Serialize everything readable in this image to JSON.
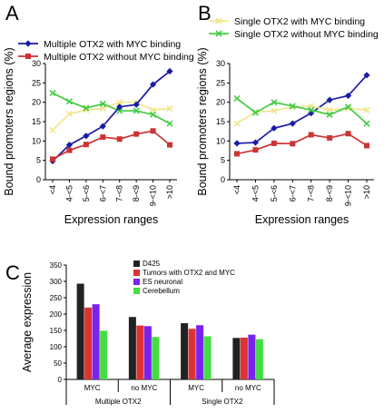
{
  "panels": {
    "a": "A",
    "b": "B",
    "c": "C"
  },
  "chart_data": [
    {
      "type": "line",
      "panel": "A",
      "categories": [
        "<4",
        "4-<5",
        "5-<6",
        "6-<7",
        "7-<8",
        "8-<9",
        "9-<10",
        ">10"
      ],
      "ylabel": "Bound promoters regions (%)",
      "xlabel": "Expression ranges",
      "ylim": [
        0,
        30
      ],
      "yticks": [
        0,
        5,
        10,
        15,
        20,
        25,
        30
      ],
      "legend": "top",
      "series": [
        {
          "name": "Multiple OTX2 with MYC binding",
          "color": "#1a1aa8",
          "marker": "diamond",
          "values": [
            4.8,
            9.0,
            11.3,
            13.8,
            18.8,
            19.4,
            24.6,
            28.0
          ]
        },
        {
          "name": "Multiple OTX2 without MYC binding",
          "color": "#cc3333",
          "marker": "square",
          "values": [
            5.3,
            7.6,
            9.1,
            11.0,
            10.5,
            11.8,
            12.6,
            9.0
          ]
        },
        {
          "name": "",
          "color": "#f0e68c",
          "marker": "x",
          "values": [
            12.8,
            17.0,
            18.0,
            18.4,
            20.0,
            20.0,
            18.0,
            18.4
          ]
        },
        {
          "name": "",
          "color": "#44cc44",
          "marker": "x",
          "values": [
            22.4,
            20.2,
            18.5,
            19.6,
            17.8,
            17.8,
            16.8,
            14.5
          ]
        }
      ]
    },
    {
      "type": "line",
      "panel": "B",
      "categories": [
        "<4",
        "4-<5",
        "5-<6",
        "6-<7",
        "7-<8",
        "8-<9",
        "9-<10",
        ">10"
      ],
      "ylabel": "Bound promoters regions (%)",
      "xlabel": "Expression ranges",
      "ylim": [
        0,
        30
      ],
      "yticks": [
        0,
        5,
        10,
        15,
        20,
        25,
        30
      ],
      "legend": "top",
      "series": [
        {
          "name": "Single OTX2 with MYC binding",
          "color": "#f0e68c",
          "marker": "x",
          "values": [
            14.5,
            17.5,
            17.8,
            18.8,
            19.0,
            18.0,
            18.4,
            18.0
          ]
        },
        {
          "name": "Single OTX2 without MYC binding",
          "color": "#44cc44",
          "marker": "x",
          "values": [
            21.0,
            17.3,
            20.0,
            19.0,
            18.0,
            16.8,
            18.8,
            14.5
          ]
        },
        {
          "name": "",
          "color": "#1a1aa8",
          "marker": "diamond",
          "values": [
            9.4,
            9.6,
            13.3,
            14.5,
            17.2,
            20.6,
            21.7,
            27.0
          ]
        },
        {
          "name": "",
          "color": "#cc3333",
          "marker": "square",
          "values": [
            6.7,
            7.7,
            9.4,
            9.3,
            11.6,
            10.8,
            11.9,
            8.8
          ]
        }
      ]
    },
    {
      "type": "bar",
      "panel": "C",
      "ylabel": "Average expression",
      "ylim": [
        0,
        350
      ],
      "yticks": [
        0,
        50,
        100,
        150,
        200,
        250,
        300,
        350
      ],
      "legend": "top-right",
      "categories": [
        "MYC",
        "no MYC",
        "MYC",
        "no MYC"
      ],
      "groups": [
        {
          "label": "Multiple OTX2",
          "span": [
            0,
            1
          ]
        },
        {
          "label": "Single OTX2",
          "span": [
            2,
            3
          ]
        }
      ],
      "series": [
        {
          "name": "D425",
          "color": "#222222",
          "values": [
            293,
            191,
            172,
            127
          ]
        },
        {
          "name": "Tumors with OTX2 and MYC",
          "color": "#dd3333",
          "values": [
            220,
            165,
            155,
            128
          ]
        },
        {
          "name": "ES neuronal",
          "color": "#7a22ee",
          "values": [
            230,
            163,
            166,
            137
          ]
        },
        {
          "name": "Cerebellum",
          "color": "#44dd44",
          "values": [
            149,
            130,
            132,
            123
          ]
        }
      ]
    }
  ]
}
